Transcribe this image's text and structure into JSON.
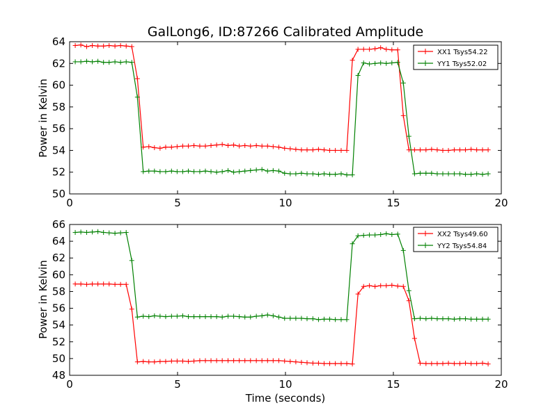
{
  "chart_data": [
    {
      "type": "line",
      "title": "GalLong6, ID:87266 Calibrated Amplitude",
      "xlabel": "",
      "ylabel": "Power in Kelvin",
      "xlim": [
        0,
        20
      ],
      "ylim": [
        50,
        64
      ],
      "xticks": [
        0,
        5,
        10,
        15,
        20
      ],
      "yticks": [
        50,
        52,
        54,
        56,
        58,
        60,
        62,
        64
      ],
      "grid": false,
      "legend_position": "top-right",
      "x": [
        0.26,
        0.52,
        0.79,
        1.05,
        1.31,
        1.57,
        1.83,
        2.1,
        2.36,
        2.62,
        2.88,
        3.14,
        3.41,
        3.67,
        3.93,
        4.19,
        4.45,
        4.72,
        4.98,
        5.24,
        5.5,
        5.76,
        6.03,
        6.29,
        6.55,
        6.81,
        7.07,
        7.34,
        7.6,
        7.86,
        8.12,
        8.38,
        8.65,
        8.91,
        9.17,
        9.43,
        9.69,
        9.96,
        10.22,
        10.48,
        10.74,
        11.0,
        11.27,
        11.53,
        11.79,
        12.05,
        12.31,
        12.58,
        12.84,
        13.1,
        13.36,
        13.62,
        13.89,
        14.15,
        14.41,
        14.67,
        14.93,
        15.2,
        15.46,
        15.72,
        15.98,
        16.24,
        16.51,
        16.77,
        17.03,
        17.29,
        17.55,
        17.82,
        18.08,
        18.34,
        18.6,
        18.86,
        19.13,
        19.39
      ],
      "series": [
        {
          "name": "XX1 Tsys54.22",
          "color": "#ff0000",
          "values": [
            63.65,
            63.7,
            63.55,
            63.65,
            63.6,
            63.6,
            63.65,
            63.6,
            63.65,
            63.6,
            63.55,
            60.6,
            54.3,
            54.35,
            54.25,
            54.2,
            54.3,
            54.3,
            54.35,
            54.4,
            54.4,
            54.45,
            54.4,
            54.4,
            54.45,
            54.5,
            54.55,
            54.45,
            54.5,
            54.4,
            54.45,
            54.4,
            54.45,
            54.4,
            54.4,
            54.35,
            54.3,
            54.2,
            54.15,
            54.1,
            54.05,
            54.05,
            54.05,
            54.1,
            54.05,
            54.0,
            54.0,
            54.0,
            54.0,
            62.3,
            63.3,
            63.3,
            63.3,
            63.35,
            63.45,
            63.3,
            63.25,
            63.25,
            57.2,
            54.05,
            54.05,
            54.05,
            54.05,
            54.1,
            54.05,
            54.0,
            54.0,
            54.05,
            54.05,
            54.05,
            54.1,
            54.05,
            54.05,
            54.05
          ]
        },
        {
          "name": "YY1 Tsys52.02",
          "color": "#008000",
          "values": [
            62.15,
            62.15,
            62.2,
            62.15,
            62.2,
            62.1,
            62.1,
            62.15,
            62.1,
            62.15,
            62.1,
            58.9,
            52.05,
            52.1,
            52.1,
            52.05,
            52.05,
            52.1,
            52.05,
            52.05,
            52.1,
            52.05,
            52.05,
            52.1,
            52.05,
            52.0,
            52.05,
            52.15,
            52.0,
            52.05,
            52.1,
            52.15,
            52.2,
            52.25,
            52.1,
            52.15,
            52.1,
            51.9,
            51.85,
            51.85,
            51.9,
            51.85,
            51.85,
            51.8,
            51.85,
            51.8,
            51.8,
            51.85,
            51.75,
            51.75,
            60.9,
            62.05,
            61.95,
            62.0,
            62.05,
            62.0,
            62.05,
            62.1,
            60.2,
            55.3,
            51.85,
            51.9,
            51.9,
            51.9,
            51.85,
            51.85,
            51.85,
            51.85,
            51.85,
            51.8,
            51.8,
            51.85,
            51.8,
            51.85
          ]
        }
      ]
    },
    {
      "type": "line",
      "title": "",
      "xlabel": "Time (seconds)",
      "ylabel": "Power in Kelvin",
      "xlim": [
        0,
        20
      ],
      "ylim": [
        48,
        66
      ],
      "xticks": [
        0,
        5,
        10,
        15,
        20
      ],
      "yticks": [
        48,
        50,
        52,
        54,
        56,
        58,
        60,
        62,
        64,
        66
      ],
      "grid": false,
      "legend_position": "top-right",
      "x": [
        0.26,
        0.52,
        0.79,
        1.05,
        1.31,
        1.57,
        1.83,
        2.1,
        2.36,
        2.62,
        2.88,
        3.14,
        3.41,
        3.67,
        3.93,
        4.19,
        4.45,
        4.72,
        4.98,
        5.24,
        5.5,
        5.76,
        6.03,
        6.29,
        6.55,
        6.81,
        7.07,
        7.34,
        7.6,
        7.86,
        8.12,
        8.38,
        8.65,
        8.91,
        9.17,
        9.43,
        9.69,
        9.96,
        10.22,
        10.48,
        10.74,
        11.0,
        11.27,
        11.53,
        11.79,
        12.05,
        12.31,
        12.58,
        12.84,
        13.1,
        13.36,
        13.62,
        13.89,
        14.15,
        14.41,
        14.67,
        14.93,
        15.2,
        15.46,
        15.72,
        15.98,
        16.24,
        16.51,
        16.77,
        17.03,
        17.29,
        17.55,
        17.82,
        18.08,
        18.34,
        18.6,
        18.86,
        19.13,
        19.39
      ],
      "series": [
        {
          "name": "XX2 Tsys49.60",
          "color": "#ff0000",
          "values": [
            58.9,
            58.9,
            58.85,
            58.9,
            58.9,
            58.9,
            58.9,
            58.85,
            58.85,
            58.85,
            55.9,
            49.6,
            49.65,
            49.6,
            49.6,
            49.65,
            49.65,
            49.7,
            49.7,
            49.7,
            49.65,
            49.7,
            49.75,
            49.75,
            49.75,
            49.75,
            49.75,
            49.75,
            49.75,
            49.75,
            49.75,
            49.75,
            49.75,
            49.75,
            49.75,
            49.75,
            49.75,
            49.7,
            49.65,
            49.6,
            49.55,
            49.5,
            49.45,
            49.45,
            49.4,
            49.4,
            49.4,
            49.4,
            49.4,
            49.35,
            57.7,
            58.6,
            58.7,
            58.6,
            58.7,
            58.7,
            58.75,
            58.65,
            58.6,
            56.9,
            52.4,
            49.45,
            49.4,
            49.4,
            49.4,
            49.4,
            49.45,
            49.4,
            49.4,
            49.45,
            49.4,
            49.4,
            49.45,
            49.35
          ],
          "note": "first point at x=0.26"
        },
        {
          "name": "YY2 Tsys54.84",
          "color": "#008000",
          "values": [
            65.05,
            65.1,
            65.05,
            65.1,
            65.15,
            65.05,
            65.0,
            64.95,
            65.0,
            65.05,
            61.7,
            54.95,
            55.05,
            55.0,
            55.1,
            55.05,
            55.0,
            55.05,
            55.05,
            55.1,
            55.0,
            55.0,
            55.0,
            55.0,
            55.0,
            55.0,
            54.95,
            55.05,
            55.05,
            55.0,
            54.95,
            54.95,
            55.05,
            55.1,
            55.2,
            55.1,
            54.95,
            54.8,
            54.8,
            54.8,
            54.8,
            54.75,
            54.75,
            54.65,
            54.7,
            54.7,
            54.65,
            54.65,
            54.65,
            63.7,
            64.65,
            64.7,
            64.75,
            64.75,
            64.8,
            64.9,
            64.8,
            64.85,
            62.9,
            58.1,
            54.75,
            54.8,
            54.75,
            54.8,
            54.75,
            54.75,
            54.75,
            54.7,
            54.75,
            54.75,
            54.7,
            54.7,
            54.7,
            54.7
          ]
        }
      ]
    }
  ]
}
